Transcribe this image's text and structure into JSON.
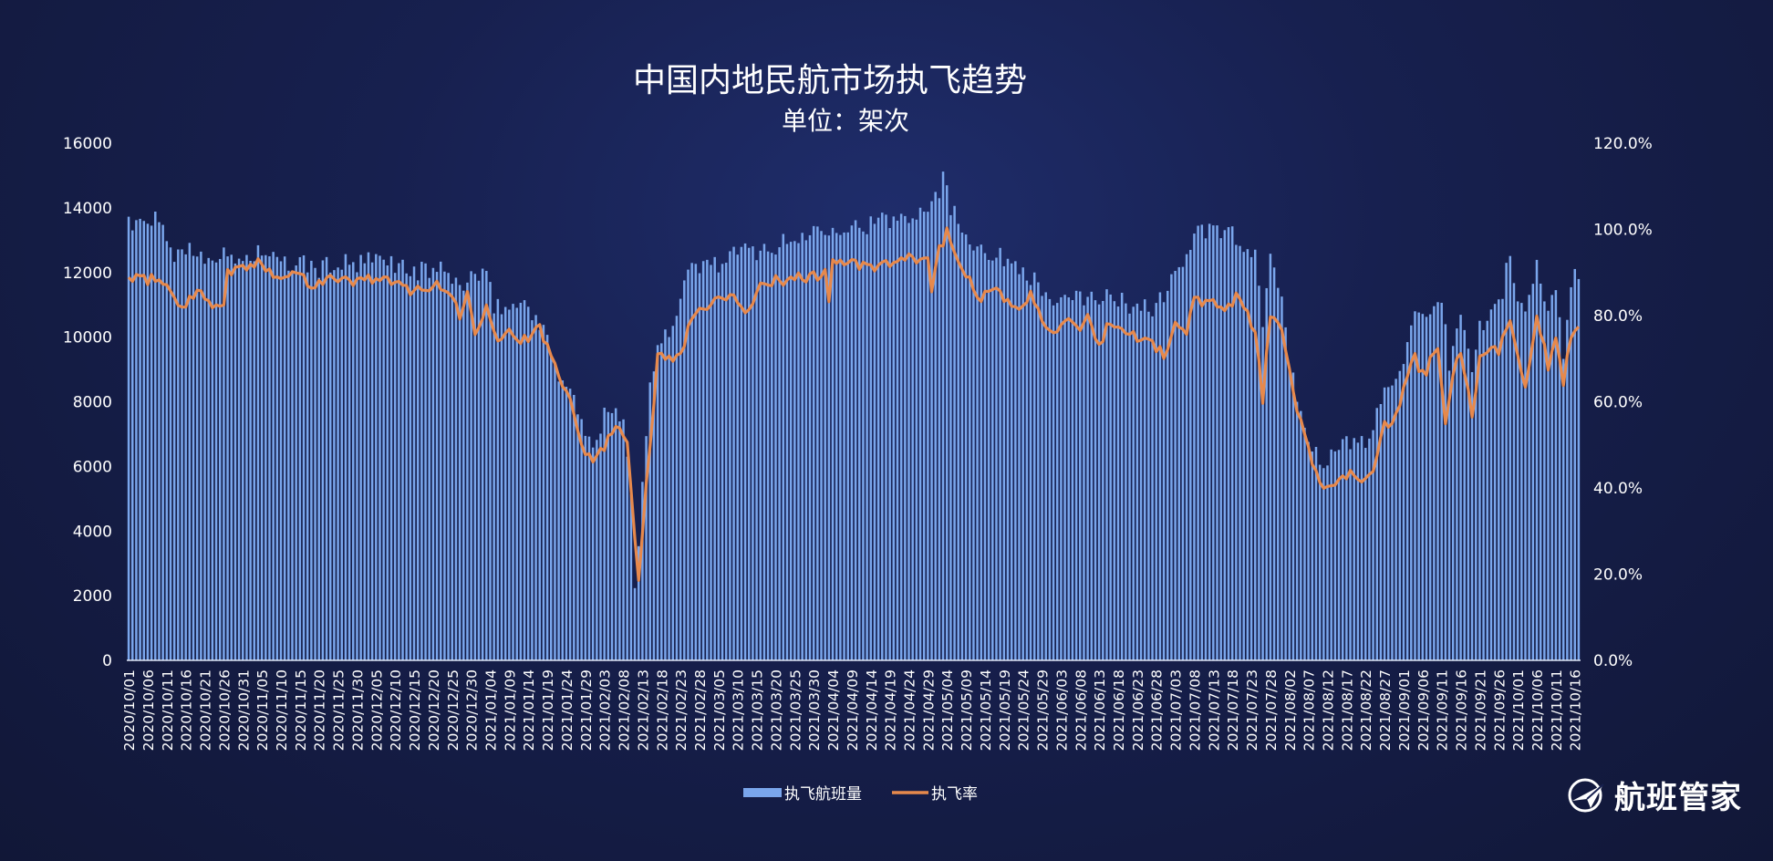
{
  "chart_data": {
    "type": "bar+line",
    "title": "中国内地民航市场执飞趋势",
    "subtitle": "单位：架次",
    "y_left": {
      "min": 0,
      "max": 16000,
      "ticks": [
        "0",
        "2000",
        "4000",
        "6000",
        "8000",
        "10000",
        "12000",
        "14000",
        "16000"
      ]
    },
    "y_right": {
      "min": 0,
      "max": 120,
      "ticks": [
        "0.0%",
        "20.0%",
        "40.0%",
        "60.0%",
        "80.0%",
        "100.0%",
        "120.0%"
      ]
    },
    "x_start": "2020-10-01",
    "x_end": "2021-10-17",
    "x_tick_step_days": 5,
    "x_tick_labels": [
      "2020/10/01",
      "2020/10/06",
      "2020/10/11",
      "2020/10/16",
      "2020/10/21",
      "2020/10/26",
      "2020/10/31",
      "2020/11/05",
      "2020/11/10",
      "2020/11/15",
      "2020/11/20",
      "2020/11/25",
      "2020/11/30",
      "2020/12/05",
      "2020/12/10",
      "2020/12/15",
      "2020/12/20",
      "2020/12/25",
      "2020/12/30",
      "2021/01/04",
      "2021/01/09",
      "2021/01/14",
      "2021/01/19",
      "2021/01/24",
      "2021/01/29",
      "2021/02/03",
      "2021/02/08",
      "2021/02/13",
      "2021/02/18",
      "2021/02/23",
      "2021/02/28",
      "2021/03/05",
      "2021/03/10",
      "2021/03/15",
      "2021/03/20",
      "2021/03/25",
      "2021/03/30",
      "2021/04/04",
      "2021/04/09",
      "2021/04/14",
      "2021/04/19",
      "2021/04/24",
      "2021/04/29",
      "2021/05/04",
      "2021/05/09",
      "2021/05/14",
      "2021/05/19",
      "2021/05/24",
      "2021/05/29",
      "2021/06/03",
      "2021/06/08",
      "2021/06/13",
      "2021/06/18",
      "2021/06/23",
      "2021/06/28",
      "2021/07/03",
      "2021/07/08",
      "2021/07/13",
      "2021/07/18",
      "2021/07/23",
      "2021/07/28",
      "2021/08/02",
      "2021/08/07",
      "2021/08/12",
      "2021/08/17",
      "2021/08/22",
      "2021/08/27",
      "2021/09/01",
      "2021/09/06",
      "2021/09/11",
      "2021/09/16",
      "2021/09/21",
      "2021/09/26",
      "2021/10/01",
      "2021/10/06",
      "2021/10/11",
      "2021/10/16"
    ],
    "series": [
      {
        "name": "执飞航班量",
        "kind": "bar",
        "axis": "left",
        "color": "#7aa6ec",
        "anchors": [
          [
            "2020-10-01",
            13800
          ],
          [
            "2020-10-02",
            13400
          ],
          [
            "2020-10-05",
            13500
          ],
          [
            "2020-10-07",
            13700
          ],
          [
            "2020-10-10",
            13300
          ],
          [
            "2020-10-12",
            12900
          ],
          [
            "2020-10-13",
            12300
          ],
          [
            "2020-10-14",
            12800
          ],
          [
            "2020-10-20",
            12600
          ],
          [
            "2020-10-25",
            12500
          ],
          [
            "2020-10-31",
            12400
          ],
          [
            "2020-11-05",
            12700
          ],
          [
            "2020-11-10",
            12200
          ],
          [
            "2020-11-15",
            12300
          ],
          [
            "2020-11-20",
            12100
          ],
          [
            "2020-11-25",
            12300
          ],
          [
            "2020-11-30",
            12200
          ],
          [
            "2020-12-05",
            12400
          ],
          [
            "2020-12-10",
            12300
          ],
          [
            "2020-12-15",
            12000
          ],
          [
            "2020-12-20",
            12100
          ],
          [
            "2020-12-25",
            11900
          ],
          [
            "2020-12-27",
            11500
          ],
          [
            "2020-12-30",
            11900
          ],
          [
            "2021-01-03",
            11800
          ],
          [
            "2021-01-05",
            11000
          ],
          [
            "2021-01-09",
            10900
          ],
          [
            "2021-01-14",
            11100
          ],
          [
            "2021-01-17",
            10300
          ],
          [
            "2021-01-19",
            9900
          ],
          [
            "2021-01-22",
            8900
          ],
          [
            "2021-01-25",
            8300
          ],
          [
            "2021-01-27",
            7800
          ],
          [
            "2021-01-29",
            6800
          ],
          [
            "2021-02-01",
            6700
          ],
          [
            "2021-02-03",
            7500
          ],
          [
            "2021-02-05",
            7900
          ],
          [
            "2021-02-08",
            7600
          ],
          [
            "2021-02-10",
            5200
          ],
          [
            "2021-02-11",
            2300
          ],
          [
            "2021-02-12",
            3400
          ],
          [
            "2021-02-13",
            5500
          ],
          [
            "2021-02-15",
            8500
          ],
          [
            "2021-02-17",
            9900
          ],
          [
            "2021-02-19",
            10200
          ],
          [
            "2021-02-22",
            10500
          ],
          [
            "2021-02-24",
            11800
          ],
          [
            "2021-02-27",
            12200
          ],
          [
            "2021-03-05",
            12300
          ],
          [
            "2021-03-10",
            12600
          ],
          [
            "2021-03-15",
            12700
          ],
          [
            "2021-03-20",
            12800
          ],
          [
            "2021-03-25",
            13000
          ],
          [
            "2021-03-30",
            13300
          ],
          [
            "2021-04-04",
            13500
          ],
          [
            "2021-04-09",
            13400
          ],
          [
            "2021-04-14",
            13500
          ],
          [
            "2021-04-19",
            13600
          ],
          [
            "2021-04-24",
            13800
          ],
          [
            "2021-04-29",
            14100
          ],
          [
            "2021-05-02",
            14600
          ],
          [
            "2021-05-03",
            15000
          ],
          [
            "2021-05-05",
            14000
          ],
          [
            "2021-05-09",
            13200
          ],
          [
            "2021-05-14",
            12700
          ],
          [
            "2021-05-19",
            12400
          ],
          [
            "2021-05-24",
            12200
          ],
          [
            "2021-05-29",
            11400
          ],
          [
            "2021-06-03",
            11000
          ],
          [
            "2021-06-08",
            11200
          ],
          [
            "2021-06-13",
            11300
          ],
          [
            "2021-06-18",
            11100
          ],
          [
            "2021-06-23",
            11000
          ],
          [
            "2021-06-28",
            10900
          ],
          [
            "2021-07-03",
            12000
          ],
          [
            "2021-07-06",
            12500
          ],
          [
            "2021-07-08",
            13200
          ],
          [
            "2021-07-13",
            13300
          ],
          [
            "2021-07-18",
            13200
          ],
          [
            "2021-07-21",
            12600
          ],
          [
            "2021-07-24",
            12400
          ],
          [
            "2021-07-26",
            10500
          ],
          [
            "2021-07-28",
            12500
          ],
          [
            "2021-07-31",
            11200
          ],
          [
            "2021-08-02",
            9300
          ],
          [
            "2021-08-04",
            7900
          ],
          [
            "2021-08-07",
            6900
          ],
          [
            "2021-08-10",
            6300
          ],
          [
            "2021-08-12",
            6200
          ],
          [
            "2021-08-17",
            6700
          ],
          [
            "2021-08-22",
            6700
          ],
          [
            "2021-08-27",
            8300
          ],
          [
            "2021-09-01",
            9400
          ],
          [
            "2021-09-04",
            10500
          ],
          [
            "2021-09-08",
            10500
          ],
          [
            "2021-09-11",
            11000
          ],
          [
            "2021-09-13",
            9200
          ],
          [
            "2021-09-16",
            10700
          ],
          [
            "2021-09-19",
            9000
          ],
          [
            "2021-09-21",
            10300
          ],
          [
            "2021-09-26",
            11000
          ],
          [
            "2021-09-29",
            12500
          ],
          [
            "2021-10-01",
            11100
          ],
          [
            "2021-10-03",
            10800
          ],
          [
            "2021-10-06",
            12200
          ],
          [
            "2021-10-08",
            11000
          ],
          [
            "2021-10-11",
            11400
          ],
          [
            "2021-10-13",
            9500
          ],
          [
            "2021-10-15",
            11800
          ],
          [
            "2021-10-17",
            12100
          ]
        ]
      },
      {
        "name": "执飞率",
        "kind": "line",
        "axis": "right",
        "color": "#e7894c",
        "anchors": [
          [
            "2020-10-01",
            88.5
          ],
          [
            "2020-10-05",
            88
          ],
          [
            "2020-10-08",
            89
          ],
          [
            "2020-10-12",
            86
          ],
          [
            "2020-10-14",
            82
          ],
          [
            "2020-10-17",
            84
          ],
          [
            "2020-10-20",
            85
          ],
          [
            "2020-10-23",
            83
          ],
          [
            "2020-10-26",
            82
          ],
          [
            "2020-10-27",
            90
          ],
          [
            "2020-10-31",
            91
          ],
          [
            "2020-11-05",
            92
          ],
          [
            "2020-11-10",
            89
          ],
          [
            "2020-11-15",
            90
          ],
          [
            "2020-11-18",
            87
          ],
          [
            "2020-11-22",
            89
          ],
          [
            "2020-11-25",
            88
          ],
          [
            "2020-11-30",
            88
          ],
          [
            "2020-12-05",
            89
          ],
          [
            "2020-12-10",
            87
          ],
          [
            "2020-12-15",
            86
          ],
          [
            "2020-12-20",
            87
          ],
          [
            "2020-12-25",
            85
          ],
          [
            "2020-12-27",
            80
          ],
          [
            "2020-12-29",
            85
          ],
          [
            "2020-12-31",
            76
          ],
          [
            "2021-01-03",
            83
          ],
          [
            "2021-01-06",
            75
          ],
          [
            "2021-01-09",
            76
          ],
          [
            "2021-01-14",
            74
          ],
          [
            "2021-01-17",
            77
          ],
          [
            "2021-01-20",
            71
          ],
          [
            "2021-01-22",
            66
          ],
          [
            "2021-01-25",
            62
          ],
          [
            "2021-01-26",
            57
          ],
          [
            "2021-01-29",
            48
          ],
          [
            "2021-02-01",
            47
          ],
          [
            "2021-02-04",
            51
          ],
          [
            "2021-02-06",
            55
          ],
          [
            "2021-02-09",
            52
          ],
          [
            "2021-02-11",
            28
          ],
          [
            "2021-02-12",
            19
          ],
          [
            "2021-02-14",
            42
          ],
          [
            "2021-02-16",
            58
          ],
          [
            "2021-02-17",
            72
          ],
          [
            "2021-02-19",
            70
          ],
          [
            "2021-02-22",
            71
          ],
          [
            "2021-02-24",
            74
          ],
          [
            "2021-02-27",
            81
          ],
          [
            "2021-03-04",
            83
          ],
          [
            "2021-03-10",
            84
          ],
          [
            "2021-03-12",
            80
          ],
          [
            "2021-03-15",
            86
          ],
          [
            "2021-03-20",
            88
          ],
          [
            "2021-03-25",
            89
          ],
          [
            "2021-03-30",
            89
          ],
          [
            "2021-04-02",
            90
          ],
          [
            "2021-04-03",
            83
          ],
          [
            "2021-04-04",
            93
          ],
          [
            "2021-04-09",
            92
          ],
          [
            "2021-04-14",
            91
          ],
          [
            "2021-04-19",
            92
          ],
          [
            "2021-04-24",
            93
          ],
          [
            "2021-04-29",
            93
          ],
          [
            "2021-04-30",
            86
          ],
          [
            "2021-05-02",
            96
          ],
          [
            "2021-05-04",
            99
          ],
          [
            "2021-05-06",
            94
          ],
          [
            "2021-05-09",
            90
          ],
          [
            "2021-05-13",
            84
          ],
          [
            "2021-05-16",
            86
          ],
          [
            "2021-05-19",
            84
          ],
          [
            "2021-05-22",
            81
          ],
          [
            "2021-05-26",
            85
          ],
          [
            "2021-05-29",
            79
          ],
          [
            "2021-06-01",
            77
          ],
          [
            "2021-06-05",
            78
          ],
          [
            "2021-06-08",
            76
          ],
          [
            "2021-06-10",
            79
          ],
          [
            "2021-06-13",
            72
          ],
          [
            "2021-06-15",
            78
          ],
          [
            "2021-06-18",
            77
          ],
          [
            "2021-06-23",
            75
          ],
          [
            "2021-06-28",
            73
          ],
          [
            "2021-06-30",
            70
          ],
          [
            "2021-07-03",
            78
          ],
          [
            "2021-07-06",
            76
          ],
          [
            "2021-07-08",
            84
          ],
          [
            "2021-07-13",
            83
          ],
          [
            "2021-07-17",
            82
          ],
          [
            "2021-07-19",
            85
          ],
          [
            "2021-07-22",
            80
          ],
          [
            "2021-07-24",
            76
          ],
          [
            "2021-07-26",
            61
          ],
          [
            "2021-07-28",
            80
          ],
          [
            "2021-07-31",
            76
          ],
          [
            "2021-08-03",
            62
          ],
          [
            "2021-08-06",
            52
          ],
          [
            "2021-08-09",
            44
          ],
          [
            "2021-08-12",
            39
          ],
          [
            "2021-08-14",
            40
          ],
          [
            "2021-08-17",
            43
          ],
          [
            "2021-08-21",
            42
          ],
          [
            "2021-08-24",
            45
          ],
          [
            "2021-08-27",
            55
          ],
          [
            "2021-08-30",
            56
          ],
          [
            "2021-09-02",
            66
          ],
          [
            "2021-09-04",
            70
          ],
          [
            "2021-09-06",
            66
          ],
          [
            "2021-09-10",
            72
          ],
          [
            "2021-09-12",
            55
          ],
          [
            "2021-09-14",
            66
          ],
          [
            "2021-09-16",
            72
          ],
          [
            "2021-09-19",
            57
          ],
          [
            "2021-09-21",
            70
          ],
          [
            "2021-09-26",
            72
          ],
          [
            "2021-09-29",
            80
          ],
          [
            "2021-10-01",
            70
          ],
          [
            "2021-10-03",
            64
          ],
          [
            "2021-10-06",
            80
          ],
          [
            "2021-10-09",
            68
          ],
          [
            "2021-10-11",
            74
          ],
          [
            "2021-10-13",
            64
          ],
          [
            "2021-10-15",
            76
          ],
          [
            "2021-10-17",
            77
          ]
        ]
      }
    ],
    "legend_position": "bottom-center",
    "grid": false
  },
  "brand": {
    "name": "航班管家"
  }
}
